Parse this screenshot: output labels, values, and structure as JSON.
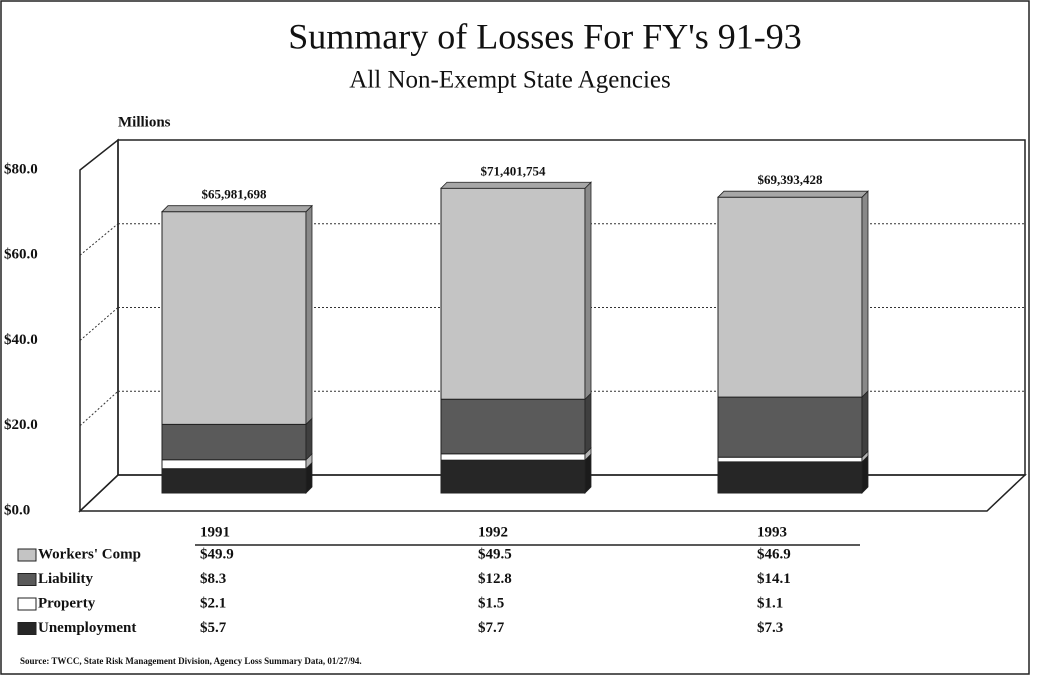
{
  "chart_data": {
    "type": "stacked_bar_3d",
    "title": "Summary of Losses For FY's 91-93",
    "subtitle": "All Non-Exempt State Agencies",
    "y_label": "Millions",
    "categories": [
      "1991",
      "1992",
      "1993"
    ],
    "series": [
      {
        "name": "Workers' Comp",
        "color": "#c4c4c4",
        "values": [
          49.9,
          49.5,
          46.9
        ],
        "value_labels": [
          "$49.9",
          "$49.5",
          "$46.9"
        ]
      },
      {
        "name": "Liability",
        "color": "#5a5a5a",
        "values": [
          8.3,
          12.8,
          14.1
        ],
        "value_labels": [
          "$8.3",
          "$12.8",
          "$14.1"
        ]
      },
      {
        "name": "Property",
        "color": "#ffffff",
        "values": [
          2.1,
          1.5,
          1.1
        ],
        "value_labels": [
          "$2.1",
          "$1.5",
          "$1.1"
        ]
      },
      {
        "name": "Unemployment",
        "color": "#262626",
        "values": [
          5.7,
          7.7,
          7.3
        ],
        "value_labels": [
          "$5.7",
          "$7.7",
          "$7.3"
        ]
      }
    ],
    "totals": {
      "values": [
        65.981698,
        71.401754,
        69.393428
      ],
      "value_labels": [
        "$65,981,698",
        "$71,401,754",
        "$69,393,428"
      ]
    },
    "ylim": [
      0,
      80
    ],
    "yticks": [
      {
        "value": 0,
        "label": "$0.0"
      },
      {
        "value": 20,
        "label": "$20.0"
      },
      {
        "value": 40,
        "label": "$40.0"
      },
      {
        "value": 60,
        "label": "$60.0"
      },
      {
        "value": 80,
        "label": "$80.0"
      }
    ],
    "grid": true,
    "source": "Source: TWCC, State Risk Management Division, Agency Loss Summary Data, 01/27/94."
  }
}
